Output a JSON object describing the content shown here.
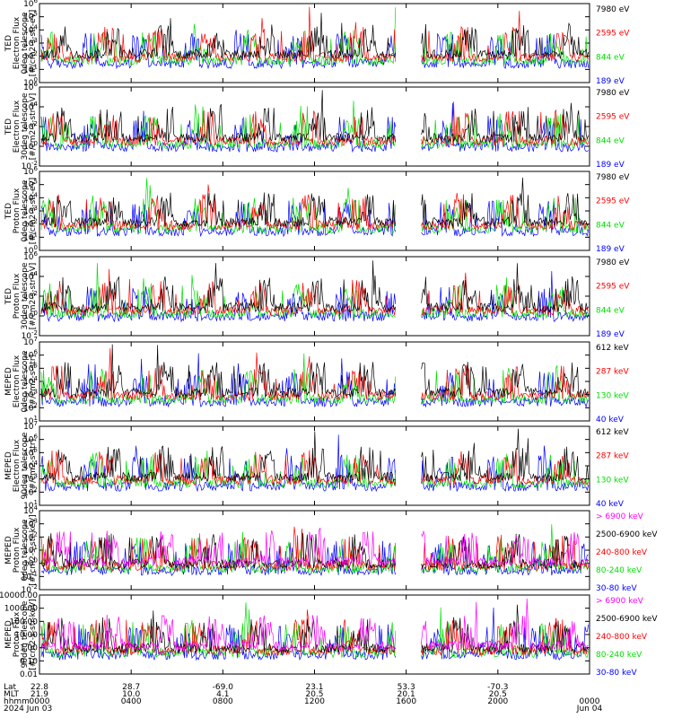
{
  "colors": {
    "blue": "#0000ff",
    "red": "#ff0000",
    "green": "#00e000",
    "black": "#000000",
    "magenta": "#ff00ff",
    "axis": "#000000"
  },
  "x_axis": {
    "row_labels": [
      "Lat",
      "MLT",
      "hhmm",
      "2024"
    ],
    "ticks": [
      {
        "lat": "22.8",
        "mlt": "21.9",
        "hhmm": "0000",
        "date": "Jun 03"
      },
      {
        "lat": "28.7",
        "mlt": "10.0",
        "hhmm": "0400",
        "date": ""
      },
      {
        "lat": "-69.0",
        "mlt": "4.1",
        "hhmm": "0800",
        "date": ""
      },
      {
        "lat": "23.1",
        "mlt": "20.5",
        "hhmm": "1200",
        "date": ""
      },
      {
        "lat": "53.3",
        "mlt": "20.1",
        "hhmm": "1600",
        "date": ""
      },
      {
        "lat": "-70.3",
        "mlt": "20.5",
        "hhmm": "2000",
        "date": ""
      },
      {
        "lat": "",
        "mlt": "",
        "hhmm": "0000",
        "date": "Jun 04"
      }
    ]
  },
  "chart_data": [
    {
      "type": "line",
      "ylabel": [
        "TED",
        "Electron Flux",
        "0deg telescope",
        "[#/cm2-s-str-eV]"
      ],
      "yscale": "log",
      "ylim_exp": [
        0,
        6
      ],
      "ticks": [
        "10^0",
        "10^1",
        "10^2",
        "10^3",
        "10^4",
        "10^5",
        "10^6"
      ],
      "series": [
        {
          "name": "7980 eV",
          "color": "black"
        },
        {
          "name": "2595 eV",
          "color": "red"
        },
        {
          "name": "844 eV",
          "color": "green"
        },
        {
          "name": "189 eV",
          "color": "blue"
        }
      ],
      "data_gap": [
        "1535",
        "1640"
      ]
    },
    {
      "type": "line",
      "ylabel": [
        "TED",
        "Electron Flux",
        "30deg telescope",
        "[#/cm2-s-str-eV]"
      ],
      "yscale": "log",
      "ylim_exp": [
        -2,
        6
      ],
      "ticks": [
        "10^-2",
        "10^0",
        "10^2",
        "10^4",
        "10^6"
      ],
      "series": [
        {
          "name": "7980 eV",
          "color": "black"
        },
        {
          "name": "2595 eV",
          "color": "red"
        },
        {
          "name": "844 eV",
          "color": "green"
        },
        {
          "name": "189 eV",
          "color": "blue"
        }
      ],
      "data_gap": [
        "1535",
        "1640"
      ]
    },
    {
      "type": "line",
      "ylabel": [
        "TED",
        "Proton Flux",
        "0deg telescope",
        "[#/cm2-s-str-eV]"
      ],
      "yscale": "log",
      "ylim_exp": [
        0,
        6
      ],
      "ticks": [
        "10^0",
        "10^1",
        "10^2",
        "10^3",
        "10^4",
        "10^5",
        "10^6"
      ],
      "series": [
        {
          "name": "7980 eV",
          "color": "black"
        },
        {
          "name": "2595 eV",
          "color": "red"
        },
        {
          "name": "844 eV",
          "color": "green"
        },
        {
          "name": "189 eV",
          "color": "blue"
        }
      ],
      "data_gap": [
        "1535",
        "1640"
      ]
    },
    {
      "type": "line",
      "ylabel": [
        "TED",
        "Proton Flux",
        "30deg telescope",
        "[#/cm2-s-str-eV]"
      ],
      "yscale": "log",
      "ylim_exp": [
        -2,
        6
      ],
      "ticks": [
        "10^-2",
        "10^0",
        "10^2",
        "10^4",
        "10^6"
      ],
      "series": [
        {
          "name": "7980 eV",
          "color": "black"
        },
        {
          "name": "2595 eV",
          "color": "red"
        },
        {
          "name": "844 eV",
          "color": "green"
        },
        {
          "name": "189 eV",
          "color": "blue"
        }
      ],
      "data_gap": [
        "1535",
        "1640"
      ]
    },
    {
      "type": "line",
      "ylabel": [
        "MEPED",
        "Electron Flux",
        "0deg telescope",
        "[#/cm2-s-str]"
      ],
      "yscale": "log",
      "ylim_exp": [
        1,
        7
      ],
      "ticks": [
        "10^1",
        "10^2",
        "10^3",
        "10^4",
        "10^5",
        "10^6",
        "10^7"
      ],
      "series": [
        {
          "name": "612 keV",
          "color": "black"
        },
        {
          "name": "287 keV",
          "color": "red"
        },
        {
          "name": "130 keV",
          "color": "green"
        },
        {
          "name": "40 keV",
          "color": "blue"
        }
      ],
      "data_gap": [
        "1535",
        "1640"
      ]
    },
    {
      "type": "line",
      "ylabel": [
        "MEPED",
        "Electron Flux",
        "90deg telescope",
        "[#/cm2-s-str]"
      ],
      "yscale": "log",
      "ylim_exp": [
        1,
        7
      ],
      "ticks": [
        "10^1",
        "10^2",
        "10^3",
        "10^4",
        "10^5",
        "10^6",
        "10^7"
      ],
      "series": [
        {
          "name": "612 keV",
          "color": "black"
        },
        {
          "name": "287 keV",
          "color": "red"
        },
        {
          "name": "130 keV",
          "color": "green"
        },
        {
          "name": "40 keV",
          "color": "blue"
        }
      ],
      "data_gap": [
        "1535",
        "1640"
      ]
    },
    {
      "type": "line",
      "ylabel": [
        "MEPED",
        "Proton Flux",
        "0deg telescope",
        "[#/cm2-s-str-keV]"
      ],
      "yscale": "log",
      "ylim_exp": [
        -2,
        4
      ],
      "ticks": [
        "10^-2",
        "10^-1",
        "10^0",
        "10^1",
        "10^2",
        "10^3",
        "10^4"
      ],
      "series": [
        {
          "name": "> 6900 keV",
          "color": "magenta"
        },
        {
          "name": "2500-6900 keV",
          "color": "black"
        },
        {
          "name": "240-800 keV",
          "color": "red"
        },
        {
          "name": "80-240 keV",
          "color": "green"
        },
        {
          "name": "30-80 keV",
          "color": "blue"
        }
      ],
      "data_gap": [
        "1535",
        "1640"
      ]
    },
    {
      "type": "line",
      "ylabel": [
        "MEPED",
        "Proton Flux",
        "90deg telescope",
        "[#/cm2-s-str-keV]"
      ],
      "yscale": "log",
      "ylim_exp": [
        -2,
        4
      ],
      "ticks": [
        "0.01",
        "0.10",
        "1.00",
        "10.00",
        "100.00",
        "1000.00",
        "10000.00"
      ],
      "series": [
        {
          "name": "> 6900 keV",
          "color": "magenta"
        },
        {
          "name": "2500-6900 keV",
          "color": "black"
        },
        {
          "name": "240-800 keV",
          "color": "red"
        },
        {
          "name": "80-240 keV",
          "color": "green"
        },
        {
          "name": "30-80 keV",
          "color": "blue"
        }
      ],
      "data_gap": [
        "1535",
        "1640"
      ]
    }
  ]
}
